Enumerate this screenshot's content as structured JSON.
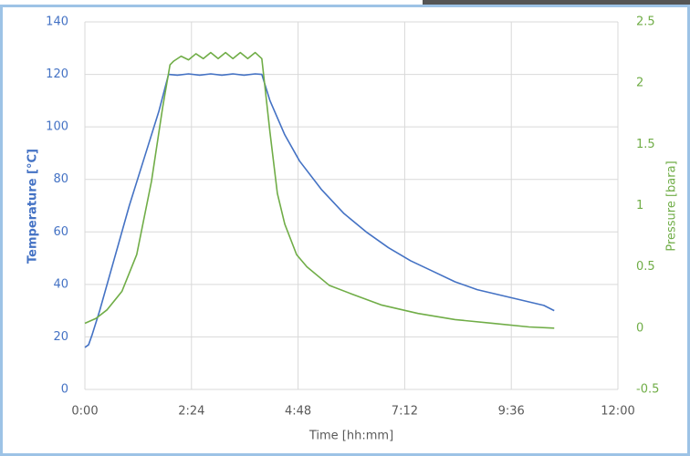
{
  "chart_data": {
    "type": "line",
    "x_label": "Time [hh:mm]",
    "y_label": "Temperature [°C]",
    "y2_label": "Pressure [bara]",
    "xlim": [
      0,
      720
    ],
    "xticks": [
      {
        "value": 0,
        "label": "0:00"
      },
      {
        "value": 144,
        "label": "2:24"
      },
      {
        "value": 288,
        "label": "4:48"
      },
      {
        "value": 432,
        "label": "7:12"
      },
      {
        "value": 576,
        "label": "9:36"
      },
      {
        "value": 720,
        "label": "12:00"
      }
    ],
    "ylim": [
      0,
      140
    ],
    "yticks": [
      0,
      20,
      40,
      60,
      80,
      100,
      120,
      140
    ],
    "y2lim": [
      -0.5,
      2.5
    ],
    "y2ticks": [
      -0.5,
      0,
      0.5,
      1,
      1.5,
      2,
      2.5
    ],
    "grid": true,
    "series": [
      {
        "name": "Temperature",
        "color": "#4472c4",
        "axis": "y",
        "x": [
          0,
          5,
          10,
          20,
          40,
          60,
          80,
          100,
          113,
          125,
          140,
          155,
          170,
          185,
          200,
          215,
          230,
          239,
          250,
          270,
          290,
          320,
          350,
          380,
          410,
          440,
          470,
          500,
          530,
          560,
          590,
          620,
          634
        ],
        "values": [
          16,
          17,
          21,
          30,
          50,
          70,
          88,
          106,
          120,
          119.7,
          120.2,
          119.7,
          120.2,
          119.7,
          120.2,
          119.7,
          120.2,
          120,
          110,
          97,
          87,
          76,
          67,
          60,
          54,
          49,
          45,
          41,
          38,
          36,
          34,
          32,
          30
        ]
      },
      {
        "name": "Pressure",
        "color": "#70ad47",
        "axis": "y2",
        "x": [
          0,
          15,
          30,
          50,
          70,
          90,
          105,
          115,
          120,
          130,
          140,
          150,
          160,
          170,
          180,
          190,
          200,
          210,
          220,
          230,
          239,
          250,
          260,
          270,
          286,
          300,
          330,
          360,
          400,
          450,
          500,
          550,
          600,
          634
        ],
        "values": [
          0.04,
          0.08,
          0.15,
          0.3,
          0.6,
          1.2,
          1.8,
          2.15,
          2.18,
          2.22,
          2.19,
          2.24,
          2.2,
          2.25,
          2.2,
          2.25,
          2.2,
          2.25,
          2.2,
          2.25,
          2.2,
          1.6,
          1.1,
          0.85,
          0.6,
          0.5,
          0.35,
          0.28,
          0.19,
          0.12,
          0.07,
          0.04,
          0.01,
          0.0
        ]
      }
    ]
  }
}
